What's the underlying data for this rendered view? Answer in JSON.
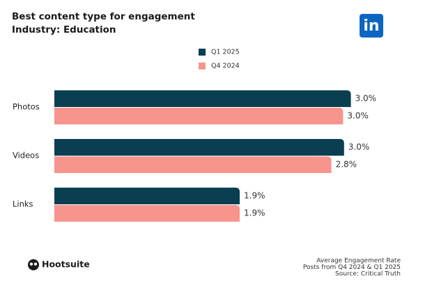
{
  "chart_data": {
    "type": "bar",
    "orientation": "horizontal",
    "title": "Best content type for engagement",
    "subtitle": "Industry: Education",
    "categories": [
      "Photos",
      "Videos",
      "Links"
    ],
    "series": [
      {
        "name": "Q1 2025",
        "color": "#0a3f52",
        "values": [
          3.04,
          2.97,
          1.9
        ],
        "value_labels": [
          "3.0%",
          "3.0%",
          "1.9%"
        ]
      },
      {
        "name": "Q4 2024",
        "color": "#f7958d",
        "values": [
          2.96,
          2.84,
          1.9
        ],
        "value_labels": [
          "3.0%",
          "2.8%",
          "1.9%"
        ]
      }
    ],
    "notes": [
      "Average Engagement Rate",
      "Posts from Q4 2024 & Q1 2025",
      "Source: Critical Truth"
    ]
  },
  "branding": {
    "linkedin": "in",
    "hootsuite": "Hootsuite"
  }
}
